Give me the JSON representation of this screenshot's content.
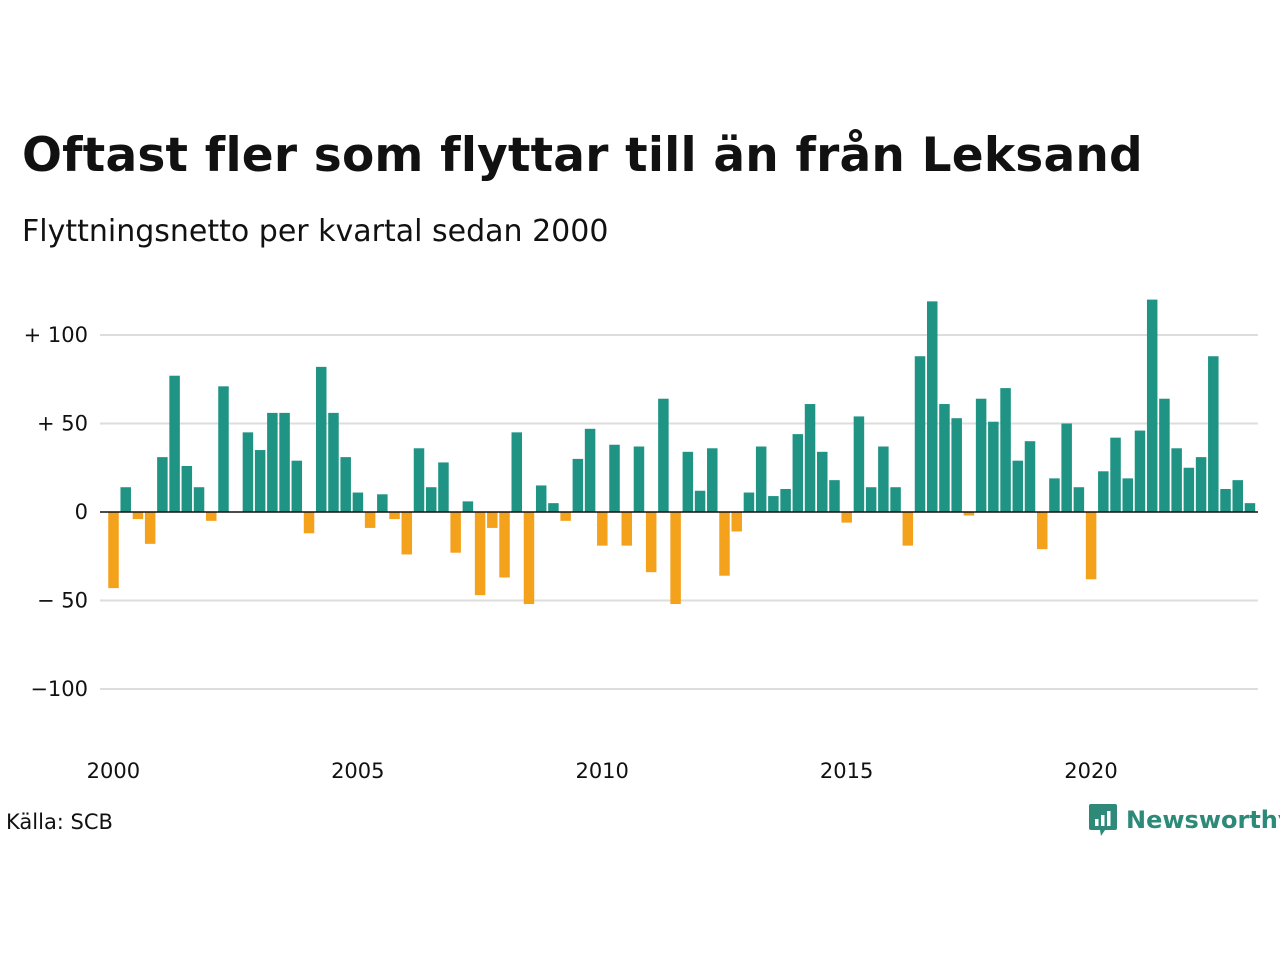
{
  "header": {
    "title": "Oftast fler som flyttar till än från Leksand",
    "subtitle": "Flyttningsnetto per kvartal sedan 2000"
  },
  "footer": {
    "source": "Källa: SCB",
    "brand": "Newsworthy"
  },
  "colors": {
    "positive": "#1f9384",
    "negative": "#f4a21c",
    "grid": "#dddddd",
    "brand": "#2d8a78"
  },
  "icons": {
    "brand": "newsworthy-logo-icon"
  },
  "chart_data": {
    "type": "bar",
    "title": "Oftast fler som flyttar till än från Leksand",
    "subtitle": "Flyttningsnetto per kvartal sedan 2000",
    "xlabel": "",
    "ylabel": "",
    "ylim": [
      -125,
      125
    ],
    "grid": true,
    "yticks": [
      100,
      50,
      0,
      -50,
      -100
    ],
    "ytick_labels": [
      "+ 100",
      "+  50",
      "0",
      "− 50",
      "−100"
    ],
    "xticks": [
      2000,
      2005,
      2010,
      2015,
      2020
    ],
    "xtick_labels": [
      "2000",
      "2005",
      "2010",
      "2015",
      "2020"
    ],
    "start_year": 2000,
    "periods_per_year": 4,
    "values": [
      -43,
      14,
      -4,
      -18,
      31,
      77,
      26,
      14,
      -5,
      71,
      0,
      45,
      35,
      56,
      56,
      29,
      -12,
      82,
      56,
      31,
      11,
      -9,
      10,
      -4,
      -24,
      36,
      14,
      28,
      -23,
      6,
      -47,
      -9,
      -37,
      45,
      -52,
      15,
      5,
      -5,
      30,
      47,
      -19,
      38,
      -19,
      37,
      -34,
      64,
      -52,
      34,
      12,
      36,
      -36,
      -11,
      11,
      37,
      9,
      13,
      44,
      61,
      34,
      18,
      -6,
      54,
      14,
      37,
      14,
      -19,
      88,
      119,
      61,
      53,
      -2,
      64,
      51,
      70,
      29,
      40,
      -21,
      19,
      50,
      14,
      -38,
      23,
      42,
      19,
      46,
      120,
      64,
      36,
      25,
      31,
      88,
      13,
      18,
      5
    ]
  }
}
